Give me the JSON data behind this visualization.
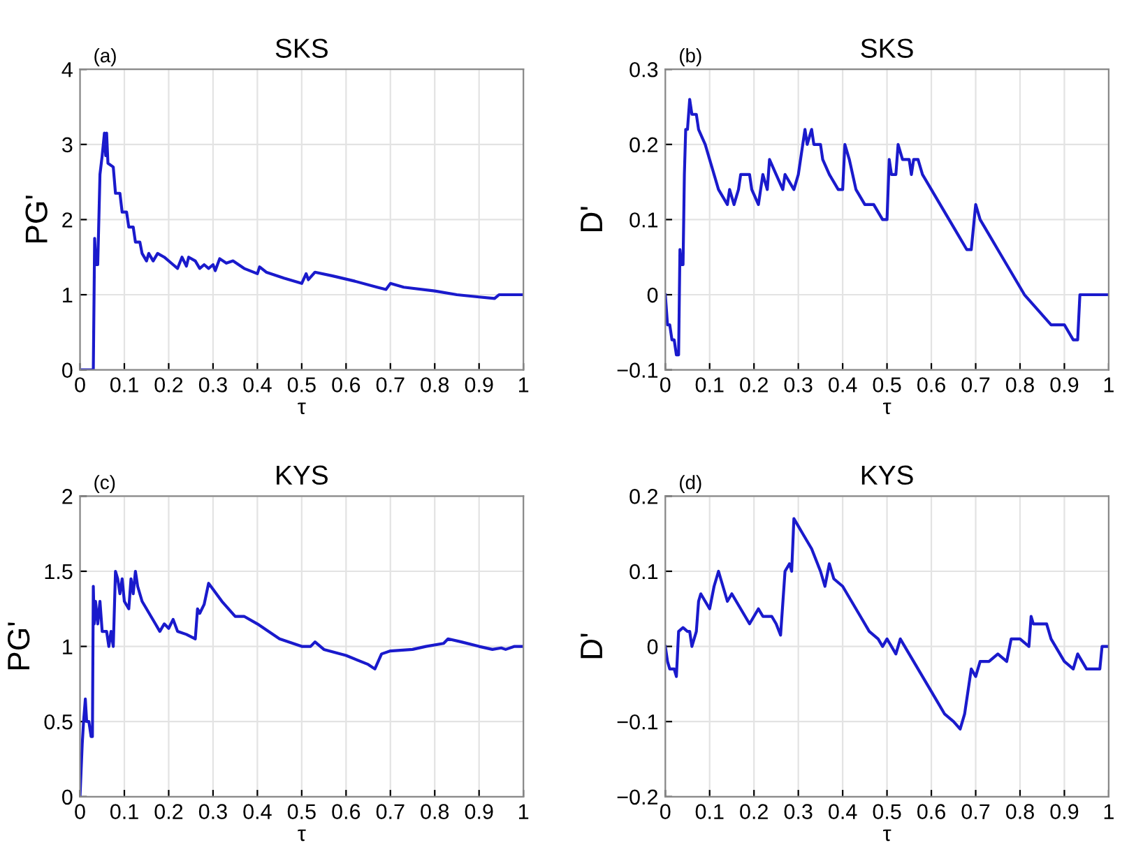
{
  "chart_data": [
    {
      "type": "line",
      "title": "SKS",
      "xlabel": "τ",
      "ylabel": "PG'",
      "annotations": [
        "(a)"
      ],
      "xlim": [
        0,
        1
      ],
      "ylim": [
        0,
        4
      ],
      "xticks": [
        0,
        0.1,
        0.2,
        0.3,
        0.4,
        0.5,
        0.6,
        0.7,
        0.8,
        0.9,
        1
      ],
      "yticks": [
        0,
        1,
        2,
        3,
        4
      ],
      "grid": true,
      "series": [
        {
          "color": "#1a1acc",
          "x": [
            0,
            0.03,
            0.033,
            0.036,
            0.04,
            0.045,
            0.05,
            0.055,
            0.058,
            0.06,
            0.063,
            0.075,
            0.08,
            0.09,
            0.095,
            0.105,
            0.11,
            0.12,
            0.125,
            0.135,
            0.14,
            0.15,
            0.155,
            0.165,
            0.175,
            0.19,
            0.21,
            0.22,
            0.23,
            0.24,
            0.245,
            0.26,
            0.27,
            0.28,
            0.29,
            0.3,
            0.305,
            0.315,
            0.33,
            0.345,
            0.37,
            0.4,
            0.405,
            0.42,
            0.46,
            0.5,
            0.51,
            0.515,
            0.53,
            0.57,
            0.62,
            0.67,
            0.69,
            0.7,
            0.73,
            0.8,
            0.85,
            0.9,
            0.935,
            0.945,
            1
          ],
          "values": [
            0,
            0,
            1.75,
            1.4,
            1.4,
            2.6,
            2.85,
            3.15,
            2.85,
            3.15,
            2.75,
            2.7,
            2.35,
            2.35,
            2.1,
            2.1,
            1.9,
            1.9,
            1.7,
            1.7,
            1.55,
            1.45,
            1.55,
            1.45,
            1.55,
            1.5,
            1.4,
            1.35,
            1.5,
            1.38,
            1.5,
            1.45,
            1.35,
            1.4,
            1.35,
            1.4,
            1.32,
            1.48,
            1.42,
            1.45,
            1.35,
            1.28,
            1.37,
            1.3,
            1.22,
            1.15,
            1.28,
            1.2,
            1.3,
            1.25,
            1.18,
            1.1,
            1.07,
            1.15,
            1.1,
            1.05,
            1.0,
            0.97,
            0.95,
            1.0,
            1.0
          ]
        }
      ]
    },
    {
      "type": "line",
      "title": "SKS",
      "xlabel": "τ",
      "ylabel": "D'",
      "annotations": [
        "(b)"
      ],
      "xlim": [
        0,
        1
      ],
      "ylim": [
        -0.1,
        0.3
      ],
      "xticks": [
        0,
        0.1,
        0.2,
        0.3,
        0.4,
        0.5,
        0.6,
        0.7,
        0.8,
        0.9,
        1
      ],
      "yticks": [
        -0.1,
        0,
        0.1,
        0.2,
        0.3
      ],
      "grid": true,
      "series": [
        {
          "color": "#1a1acc",
          "x": [
            0,
            0.005,
            0.01,
            0.015,
            0.02,
            0.025,
            0.03,
            0.033,
            0.036,
            0.04,
            0.043,
            0.046,
            0.05,
            0.055,
            0.06,
            0.07,
            0.075,
            0.09,
            0.1,
            0.11,
            0.12,
            0.14,
            0.145,
            0.155,
            0.165,
            0.17,
            0.19,
            0.195,
            0.21,
            0.22,
            0.23,
            0.235,
            0.25,
            0.265,
            0.27,
            0.29,
            0.3,
            0.315,
            0.32,
            0.33,
            0.335,
            0.35,
            0.355,
            0.37,
            0.39,
            0.4,
            0.405,
            0.415,
            0.43,
            0.45,
            0.47,
            0.49,
            0.5,
            0.505,
            0.51,
            0.52,
            0.525,
            0.535,
            0.55,
            0.555,
            0.56,
            0.57,
            0.58,
            0.6,
            0.62,
            0.64,
            0.66,
            0.68,
            0.69,
            0.7,
            0.71,
            0.73,
            0.75,
            0.77,
            0.79,
            0.81,
            0.84,
            0.87,
            0.9,
            0.92,
            0.93,
            0.935,
            1.0
          ],
          "values": [
            0,
            -0.04,
            -0.04,
            -0.06,
            -0.06,
            -0.08,
            -0.08,
            0.06,
            0.04,
            0.04,
            0.16,
            0.22,
            0.22,
            0.26,
            0.24,
            0.24,
            0.22,
            0.2,
            0.18,
            0.16,
            0.14,
            0.12,
            0.14,
            0.12,
            0.14,
            0.16,
            0.16,
            0.14,
            0.12,
            0.16,
            0.14,
            0.18,
            0.16,
            0.14,
            0.16,
            0.14,
            0.16,
            0.22,
            0.2,
            0.22,
            0.2,
            0.2,
            0.18,
            0.16,
            0.14,
            0.14,
            0.2,
            0.18,
            0.14,
            0.12,
            0.12,
            0.1,
            0.1,
            0.18,
            0.16,
            0.16,
            0.2,
            0.18,
            0.18,
            0.16,
            0.18,
            0.18,
            0.16,
            0.14,
            0.12,
            0.1,
            0.08,
            0.06,
            0.06,
            0.12,
            0.1,
            0.08,
            0.06,
            0.04,
            0.02,
            0.0,
            -0.02,
            -0.04,
            -0.04,
            -0.06,
            -0.06,
            0.0,
            0
          ]
        }
      ]
    },
    {
      "type": "line",
      "title": "KYS",
      "xlabel": "τ",
      "ylabel": "PG'",
      "annotations": [
        "(c)"
      ],
      "xlim": [
        0,
        1
      ],
      "ylim": [
        0,
        2
      ],
      "xticks": [
        0,
        0.1,
        0.2,
        0.3,
        0.4,
        0.5,
        0.6,
        0.7,
        0.8,
        0.9,
        1
      ],
      "yticks": [
        0,
        0.5,
        1,
        1.5,
        2
      ],
      "grid": true,
      "series": [
        {
          "color": "#1a1acc",
          "x": [
            0,
            0.005,
            0.008,
            0.012,
            0.015,
            0.02,
            0.025,
            0.028,
            0.03,
            0.032,
            0.035,
            0.04,
            0.045,
            0.05,
            0.06,
            0.065,
            0.07,
            0.075,
            0.08,
            0.085,
            0.09,
            0.095,
            0.1,
            0.11,
            0.115,
            0.12,
            0.125,
            0.13,
            0.14,
            0.15,
            0.16,
            0.17,
            0.18,
            0.19,
            0.2,
            0.21,
            0.22,
            0.24,
            0.26,
            0.265,
            0.27,
            0.28,
            0.29,
            0.3,
            0.32,
            0.35,
            0.37,
            0.4,
            0.45,
            0.5,
            0.52,
            0.53,
            0.55,
            0.6,
            0.65,
            0.665,
            0.68,
            0.7,
            0.75,
            0.78,
            0.82,
            0.83,
            0.86,
            0.9,
            0.93,
            0.95,
            0.96,
            0.98,
            1.0
          ],
          "values": [
            0,
            0.35,
            0.5,
            0.65,
            0.5,
            0.5,
            0.4,
            0.4,
            1.4,
            1.15,
            1.3,
            1.15,
            1.3,
            1.1,
            1.1,
            1.0,
            1.1,
            1.0,
            1.5,
            1.45,
            1.35,
            1.45,
            1.3,
            1.25,
            1.45,
            1.35,
            1.5,
            1.4,
            1.3,
            1.25,
            1.2,
            1.15,
            1.1,
            1.15,
            1.12,
            1.18,
            1.1,
            1.08,
            1.05,
            1.25,
            1.22,
            1.28,
            1.42,
            1.38,
            1.3,
            1.2,
            1.2,
            1.15,
            1.05,
            1.0,
            1.0,
            1.03,
            0.98,
            0.94,
            0.88,
            0.85,
            0.95,
            0.97,
            0.98,
            1.0,
            1.02,
            1.05,
            1.03,
            1.0,
            0.98,
            0.99,
            0.98,
            1.0,
            1.0
          ]
        }
      ]
    },
    {
      "type": "line",
      "title": "KYS",
      "xlabel": "τ",
      "ylabel": "D'",
      "annotations": [
        "(d)"
      ],
      "xlim": [
        0,
        1
      ],
      "ylim": [
        -0.2,
        0.2
      ],
      "xticks": [
        0,
        0.1,
        0.2,
        0.3,
        0.4,
        0.5,
        0.6,
        0.7,
        0.8,
        0.9,
        1
      ],
      "yticks": [
        -0.2,
        -0.1,
        0,
        0.1,
        0.2
      ],
      "grid": true,
      "series": [
        {
          "color": "#1a1acc",
          "x": [
            0,
            0.005,
            0.01,
            0.02,
            0.025,
            0.03,
            0.04,
            0.05,
            0.055,
            0.06,
            0.07,
            0.075,
            0.08,
            0.09,
            0.1,
            0.11,
            0.12,
            0.13,
            0.14,
            0.15,
            0.16,
            0.18,
            0.19,
            0.2,
            0.21,
            0.22,
            0.24,
            0.25,
            0.26,
            0.27,
            0.28,
            0.285,
            0.29,
            0.3,
            0.31,
            0.33,
            0.35,
            0.36,
            0.37,
            0.38,
            0.4,
            0.42,
            0.44,
            0.46,
            0.48,
            0.49,
            0.5,
            0.52,
            0.53,
            0.55,
            0.57,
            0.59,
            0.61,
            0.63,
            0.65,
            0.665,
            0.675,
            0.685,
            0.69,
            0.7,
            0.71,
            0.73,
            0.75,
            0.77,
            0.78,
            0.8,
            0.82,
            0.825,
            0.83,
            0.86,
            0.87,
            0.9,
            0.92,
            0.93,
            0.95,
            0.98,
            0.985,
            1.0
          ],
          "values": [
            0,
            -0.02,
            -0.03,
            -0.03,
            -0.04,
            0.02,
            0.025,
            0.02,
            0.02,
            0.0,
            0.02,
            0.06,
            0.07,
            0.06,
            0.05,
            0.08,
            0.1,
            0.08,
            0.06,
            0.07,
            0.06,
            0.04,
            0.03,
            0.04,
            0.05,
            0.04,
            0.04,
            0.03,
            0.015,
            0.1,
            0.11,
            0.1,
            0.17,
            0.16,
            0.15,
            0.13,
            0.1,
            0.08,
            0.11,
            0.09,
            0.08,
            0.06,
            0.04,
            0.02,
            0.01,
            0.0,
            0.01,
            -0.01,
            0.01,
            -0.01,
            -0.03,
            -0.05,
            -0.07,
            -0.09,
            -0.1,
            -0.11,
            -0.09,
            -0.05,
            -0.03,
            -0.04,
            -0.02,
            -0.02,
            -0.01,
            -0.02,
            0.01,
            0.01,
            0.0,
            0.04,
            0.03,
            0.03,
            0.01,
            -0.02,
            -0.03,
            -0.01,
            -0.03,
            -0.03,
            0.0,
            0.0
          ]
        }
      ]
    }
  ]
}
